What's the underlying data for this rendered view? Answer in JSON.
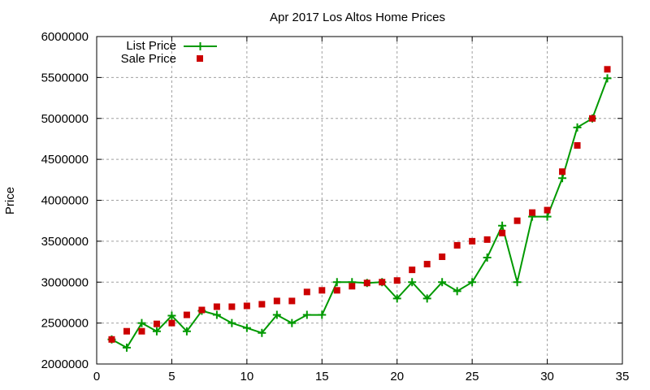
{
  "chart_data": {
    "type": "line",
    "title": "Apr 2017 Los Altos Home Prices",
    "xlabel": "",
    "ylabel": "Price",
    "xlim": [
      0,
      35
    ],
    "ylim": [
      2000000,
      6000000
    ],
    "xticks": [
      0,
      5,
      10,
      15,
      20,
      25,
      30,
      35
    ],
    "yticks": [
      2000000,
      2500000,
      3000000,
      3500000,
      4000000,
      4500000,
      5000000,
      5500000,
      6000000
    ],
    "grid": true,
    "legend_position": "top-left",
    "x": [
      1,
      2,
      3,
      4,
      5,
      6,
      7,
      8,
      9,
      10,
      11,
      12,
      13,
      14,
      15,
      16,
      17,
      18,
      19,
      20,
      21,
      22,
      23,
      24,
      25,
      26,
      27,
      28,
      29,
      30,
      31,
      32,
      33,
      34
    ],
    "series": [
      {
        "name": "List Price",
        "style": "line+cross",
        "color": "#009900",
        "values": [
          2300000,
          2200000,
          2500000,
          2400000,
          2590000,
          2400000,
          2650000,
          2600000,
          2500000,
          2440000,
          2380000,
          2600000,
          2500000,
          2600000,
          2600000,
          3000000,
          3000000,
          2990000,
          3000000,
          2800000,
          3000000,
          2800000,
          3000000,
          2890000,
          3000000,
          3300000,
          3690000,
          3000000,
          3800000,
          3800000,
          4270000,
          4890000,
          5000000,
          5490000
        ]
      },
      {
        "name": "Sale Price",
        "style": "square-points",
        "color": "#cc0000",
        "values": [
          2300000,
          2400000,
          2400000,
          2490000,
          2500000,
          2600000,
          2660000,
          2700000,
          2700000,
          2710000,
          2730000,
          2770000,
          2770000,
          2880000,
          2900000,
          2900000,
          2950000,
          2990000,
          3000000,
          3020000,
          3150000,
          3220000,
          3310000,
          3450000,
          3500000,
          3520000,
          3600000,
          3750000,
          3850000,
          3880000,
          4350000,
          4670000,
          5000000,
          5600000
        ]
      }
    ]
  }
}
